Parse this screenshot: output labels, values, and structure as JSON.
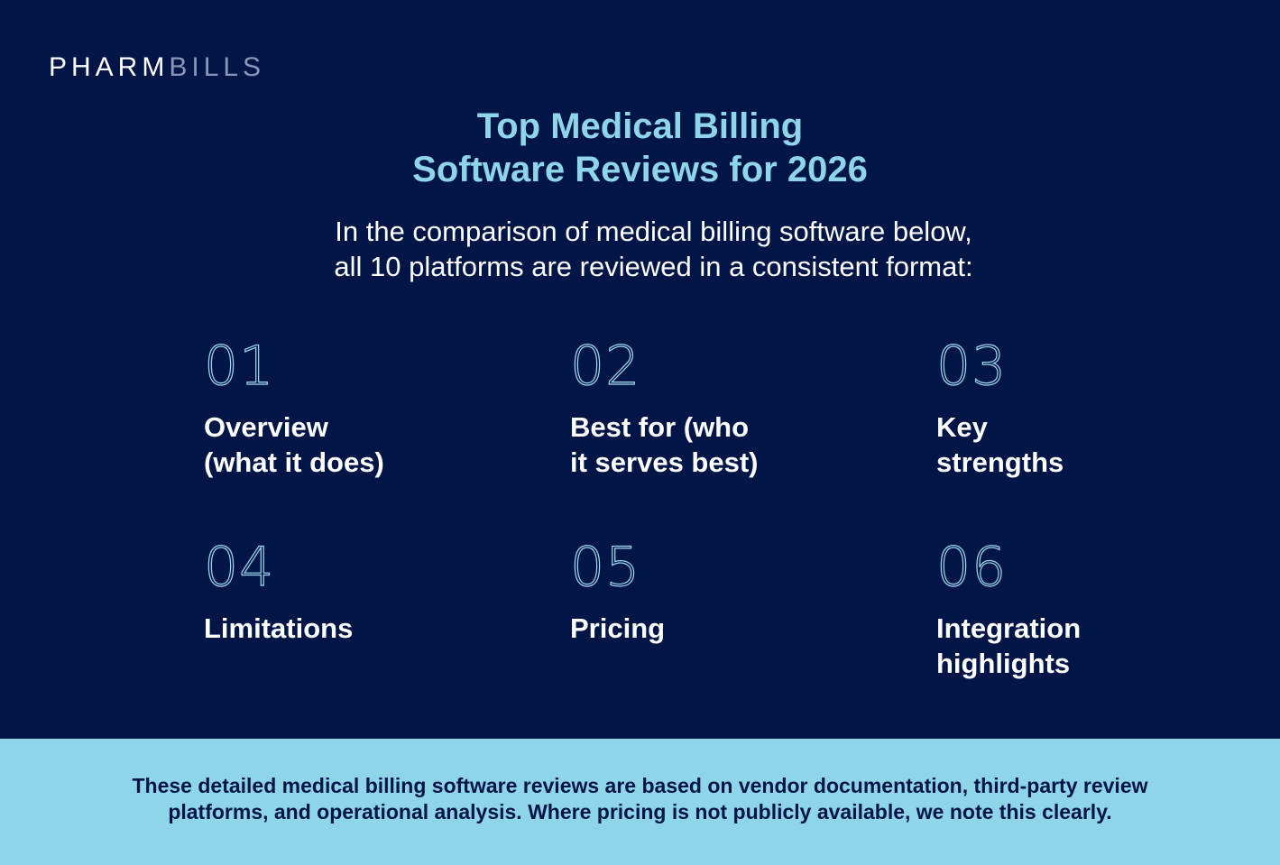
{
  "brand": {
    "part1": "PHARM",
    "part2": "BILLS"
  },
  "heading": {
    "line1": "Top Medical Billing",
    "line2": "Software Reviews for 2026"
  },
  "intro": {
    "line1": "In the comparison of medical billing software below,",
    "line2": "all 10 platforms are reviewed in a consistent format:"
  },
  "items": [
    {
      "number": "01",
      "line1": "Overview",
      "line2": "(what it does)"
    },
    {
      "number": "02",
      "line1": "Best for (who",
      "line2": "it serves best)"
    },
    {
      "number": "03",
      "line1": "Key",
      "line2": "strengths"
    },
    {
      "number": "04",
      "line1": "Limitations",
      "line2": ""
    },
    {
      "number": "05",
      "line1": "Pricing",
      "line2": ""
    },
    {
      "number": "06",
      "line1": "Integration",
      "line2": "highlights"
    }
  ],
  "footer": {
    "line1": "These detailed medical billing software reviews are based on vendor documentation, third-party review",
    "line2": "platforms, and operational analysis. Where pricing is not publicly available, we note this clearly."
  },
  "colors": {
    "background": "#011547",
    "accent": "#8fd5ea",
    "footer_bg": "#8fd5ea",
    "text": "#ffffff"
  }
}
